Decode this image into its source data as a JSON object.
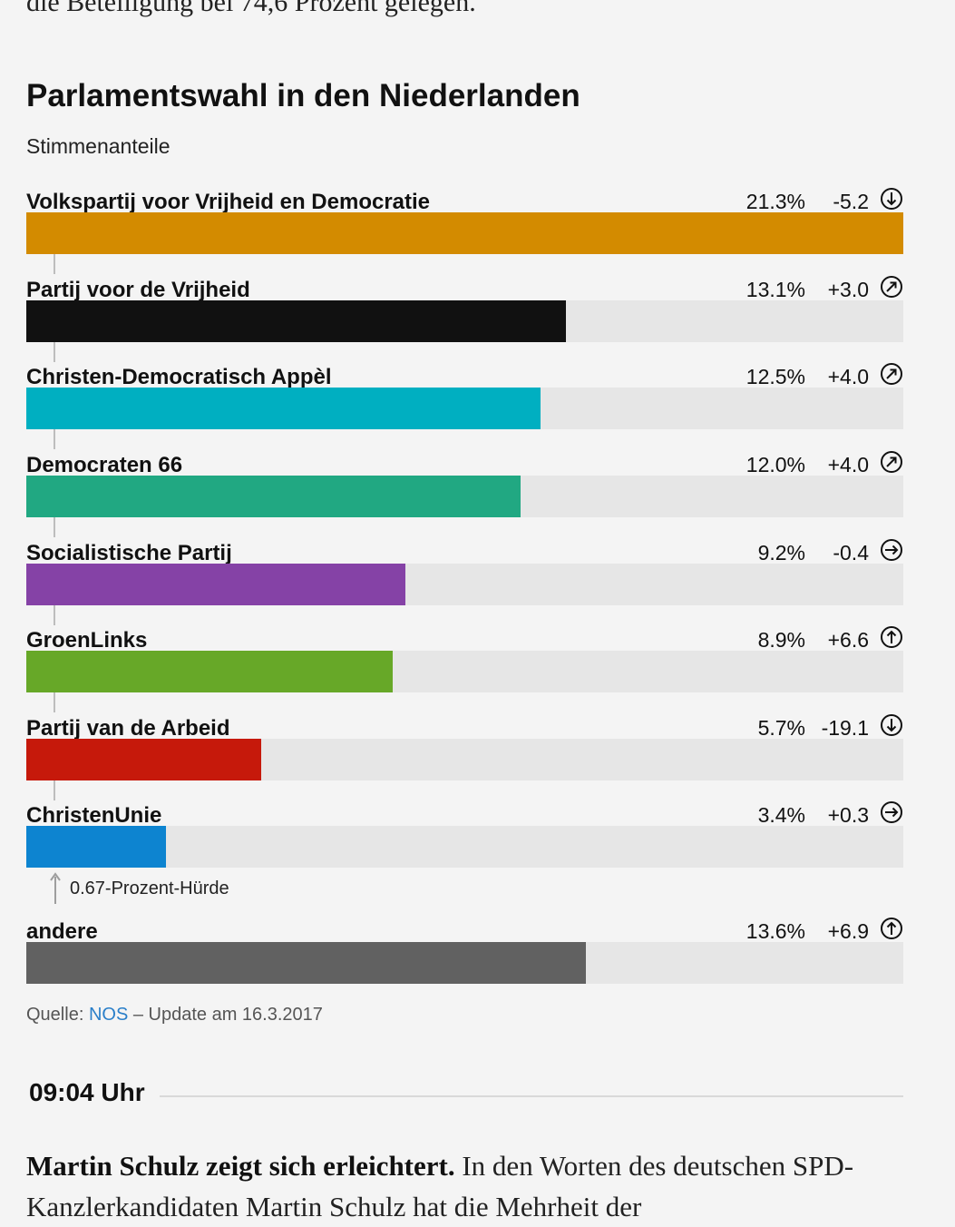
{
  "intro_text": "die Beteiligung bei 74,6 Prozent gelegen.",
  "chart_data": {
    "type": "bar",
    "orientation": "horizontal",
    "title": "Parlamentswahl in den Niederlanden",
    "subtitle": "Stimmenanteile",
    "max_value": 21.3,
    "series": [
      {
        "name": "Volkspartij voor Vrijheid en Democratie",
        "pct_label": "21.3%",
        "value": 21.3,
        "change": "-5.2",
        "trend": "down",
        "color": "#d38b00"
      },
      {
        "name": "Partij voor de Vrijheid",
        "pct_label": "13.1%",
        "value": 13.1,
        "change": "+3.0",
        "trend": "up-right",
        "color": "#111111"
      },
      {
        "name": "Christen-Democratisch Appèl",
        "pct_label": "12.5%",
        "value": 12.5,
        "change": "+4.0",
        "trend": "up-right",
        "color": "#00afc1"
      },
      {
        "name": "Democraten 66",
        "pct_label": "12.0%",
        "value": 12.0,
        "change": "+4.0",
        "trend": "up-right",
        "color": "#21a882"
      },
      {
        "name": "Socialistische Partij",
        "pct_label": "9.2%",
        "value": 9.2,
        "change": "-0.4",
        "trend": "right",
        "color": "#8542a6"
      },
      {
        "name": "GroenLinks",
        "pct_label": "8.9%",
        "value": 8.9,
        "change": "+6.6",
        "trend": "up",
        "color": "#67a828"
      },
      {
        "name": "Partij van de Arbeid",
        "pct_label": "5.7%",
        "value": 5.7,
        "change": "-19.1",
        "trend": "down",
        "color": "#c6190b"
      },
      {
        "name": "ChristenUnie",
        "pct_label": "3.4%",
        "value": 3.4,
        "change": "+0.3",
        "trend": "right",
        "color": "#0d84d0"
      },
      {
        "name": "andere",
        "pct_label": "13.6%",
        "value": 13.6,
        "change": "+6.9",
        "trend": "up",
        "color": "#616161"
      }
    ],
    "threshold": {
      "label": "0.67-Prozent-Hürde",
      "value": 0.67
    },
    "colors": {
      "track": "#e6e6e6",
      "connector": "#bdbdbd",
      "link": "#2a7fc9"
    }
  },
  "source": {
    "prefix": "Quelle:",
    "link_text": "NOS",
    "suffix": "– Update am 16.3.2017"
  },
  "timeline": {
    "time": "09:04 Uhr"
  },
  "article": {
    "lead_bold": "Martin Schulz zeigt sich erleichtert.",
    "text": " In den Worten des deutschen SPD-Kanzlerkandidaten Martin Schulz hat die Mehrheit der"
  }
}
